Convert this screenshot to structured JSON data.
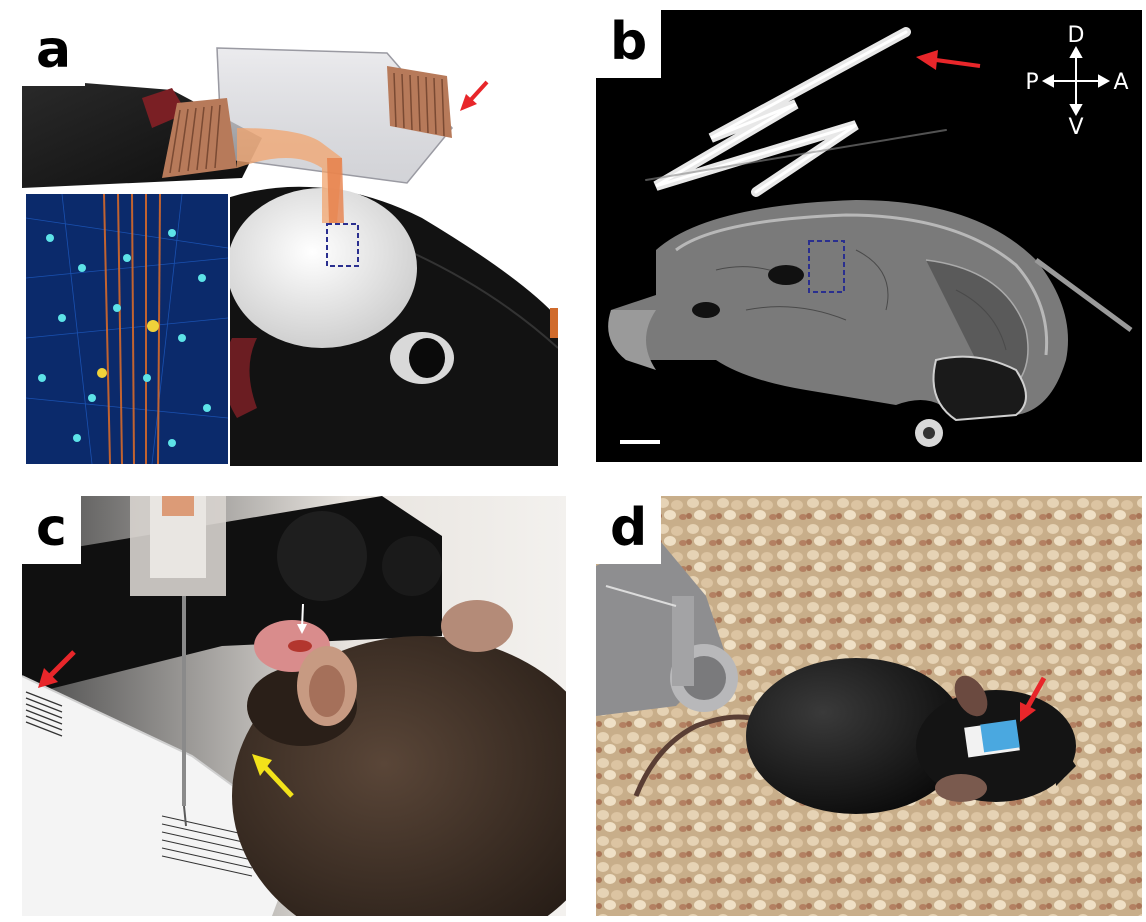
{
  "panels": {
    "a": {
      "label": "a"
    },
    "b": {
      "label": "b",
      "compass": {
        "up": "D",
        "down": "V",
        "left": "P",
        "right": "A"
      }
    },
    "c": {
      "label": "c"
    },
    "d": {
      "label": "d"
    }
  },
  "colors": {
    "arrow_red": "#e8262a",
    "arrow_yellow": "#f2e21a",
    "roi_box": "#2a2f8f"
  }
}
